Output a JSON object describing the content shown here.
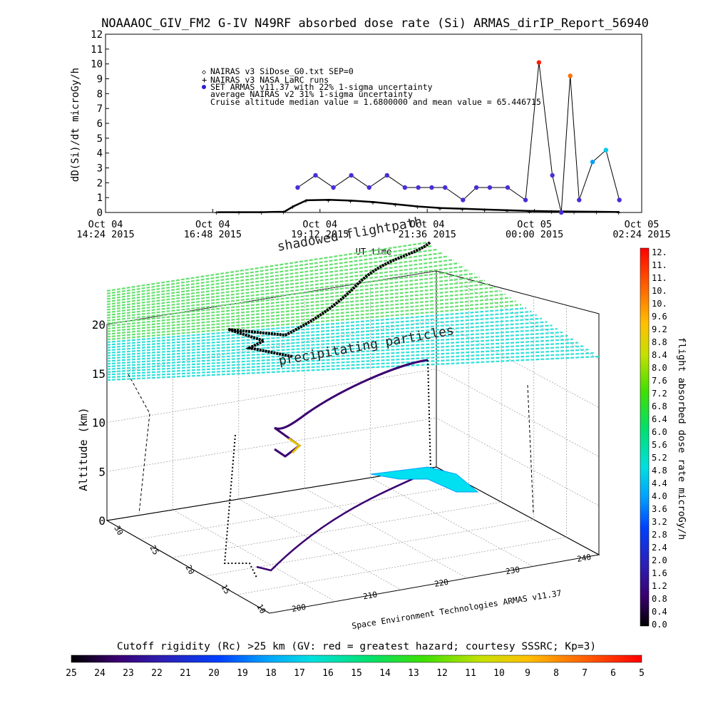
{
  "title": "NOAAAOC_GIV_FM2 G-IV   N49RF  absorbed dose rate (Si) ARMAS_dirIP_Report_56940",
  "top_chart": {
    "ylabel": "dD(Si)/dt microGy/h",
    "xlabel": "UT time",
    "legend": [
      "NAIRAS v3 SiDose_G0.txt SEP=0",
      "NAIRAS v3 NASA LaRC runs",
      "SET ARMAS v11.37 with 22% 1-sigma uncertainty",
      "average NAIRAS v2 31% 1-sigma uncertainty",
      "Cruise altitude median value = 1.6800000 and mean value = 65.446715"
    ],
    "y_ticks": [
      "0",
      "1",
      "2",
      "3",
      "4",
      "5",
      "6",
      "7",
      "8",
      "9",
      "10",
      "11",
      "12"
    ],
    "x_ticks": [
      {
        "l1": "Oct 04",
        "l2": "14:24 2015"
      },
      {
        "l1": "Oct 04",
        "l2": "16:48 2015"
      },
      {
        "l1": "Oct 04",
        "l2": "19:12 2015"
      },
      {
        "l1": "Oct 04",
        "l2": "21:36 2015"
      },
      {
        "l1": "Oct 05",
        "l2": "00:00 2015"
      },
      {
        "l1": "Oct 05",
        "l2": "02:24 2015"
      }
    ]
  },
  "chart_data": [
    {
      "type": "scatter",
      "title": "NOAAAOC_GIV_FM2 G-IV   N49RF  absorbed dose rate (Si) ARMAS_dirIP_Report_56940",
      "xlabel": "UT time",
      "ylabel": "dD(Si)/dt microGy/h",
      "x_unit": "hours since Oct 04 2015 14:24 UT",
      "xlim": [
        0,
        12
      ],
      "ylim": [
        0,
        12
      ],
      "grid": false,
      "legend_position": "top-center",
      "series": [
        {
          "name": "NAIRAS v3 NASA LaRC runs",
          "x": [
            2.5,
            3.0,
            3.5,
            4.0,
            4.2,
            4.5,
            5.0,
            5.5,
            6.0,
            6.5,
            7.0,
            7.5,
            8.0,
            8.5,
            9.0,
            9.5,
            10.0,
            10.5,
            11.0,
            11.5
          ],
          "y": [
            0.02,
            0.02,
            0.02,
            0.05,
            0.4,
            0.82,
            0.85,
            0.8,
            0.7,
            0.55,
            0.4,
            0.3,
            0.25,
            0.2,
            0.15,
            0.1,
            0.08,
            0.06,
            0.05,
            0.03
          ]
        },
        {
          "name": "SET ARMAS v11.37 with 22% 1-sigma uncertainty",
          "x": [
            4.3,
            4.7,
            5.1,
            5.5,
            5.9,
            6.3,
            6.7,
            7.0,
            7.3,
            7.6,
            8.0,
            8.3,
            8.6,
            9.0,
            9.4,
            9.7,
            10.0,
            10.2,
            10.4,
            10.6,
            10.9,
            11.2,
            11.5
          ],
          "y": [
            1.68,
            2.5,
            1.68,
            2.5,
            1.68,
            2.5,
            1.68,
            1.68,
            1.68,
            1.68,
            0.84,
            1.68,
            1.68,
            1.68,
            0.84,
            10.1,
            2.5,
            0.0,
            9.2,
            0.84,
            3.4,
            4.2,
            0.84
          ]
        }
      ]
    },
    {
      "type": "scatter",
      "title": "",
      "xlabel": "",
      "ylabel": "Altitude (km)",
      "zlim": [
        0,
        20
      ],
      "z_ticks": [
        "0",
        "5",
        "10",
        "15",
        "20"
      ],
      "longitude_ticks": [
        "200",
        "210",
        "220",
        "230",
        "240"
      ],
      "latitude_ticks": [
        "10",
        "15",
        "20",
        "25",
        "30"
      ],
      "annotations": [
        "shadowed flightpath",
        "precipitating particles",
        "Space Environment Technologies ARMAS v11.37"
      ],
      "colorbar_right": {
        "label": "flight absorbed dose rate microGy/h",
        "ticks": [
          "0.0",
          "0.4",
          "0.8",
          "1.2",
          "1.6",
          "2.0",
          "2.4",
          "2.8",
          "3.2",
          "3.6",
          "4.0",
          "4.4",
          "4.8",
          "5.2",
          "5.6",
          "6.0",
          "6.4",
          "6.8",
          "7.2",
          "7.6",
          "8.0",
          "8.4",
          "8.8",
          "9.2",
          "9.6",
          "10.",
          "10.",
          "11.",
          "11.",
          "12."
        ]
      },
      "colorbar_bottom": {
        "label": "Cutoff rigidity (Rc) >25 km (GV: red = greatest hazard; courtesy SSSRC; Kp=3)",
        "ticks": [
          "25",
          "24",
          "23",
          "22",
          "21",
          "20",
          "19",
          "18",
          "17",
          "16",
          "15",
          "14",
          "13",
          "12",
          "11",
          "10",
          "9",
          "8",
          "7",
          "6",
          "5"
        ]
      }
    }
  ]
}
